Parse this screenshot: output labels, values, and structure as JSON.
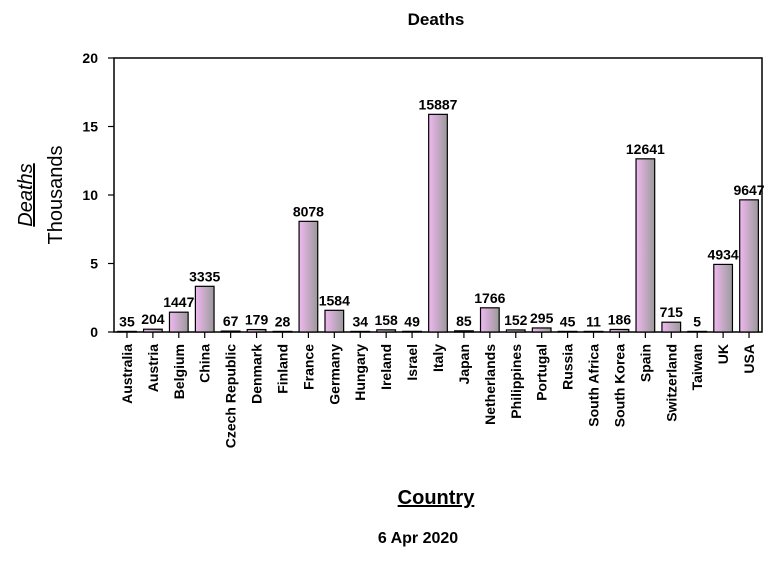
{
  "chart_data": {
    "type": "bar",
    "title": "Deaths",
    "xlabel": "Country",
    "ylabel_top": "Deaths",
    "ylabel_bottom": "Thousands",
    "footer": "6 Apr 2020",
    "ylim": [
      0,
      20
    ],
    "yticks": [
      0,
      5,
      10,
      15,
      20
    ],
    "grid": false,
    "legend": "none",
    "bar_gradient": [
      "#f0b8f0",
      "#9a9a9a"
    ],
    "categories": [
      "Australia",
      "Austria",
      "Belgium",
      "China",
      "Czech Republic",
      "Denmark",
      "Finland",
      "France",
      "Germany",
      "Hungary",
      "Ireland",
      "Israel",
      "Italy",
      "Japan",
      "Netherlands",
      "Philippines",
      "Portugal",
      "Russia",
      "South Africa",
      "South Korea",
      "Spain",
      "Switzerland",
      "Taiwan",
      "UK",
      "USA"
    ],
    "values": [
      35,
      204,
      1447,
      3335,
      67,
      179,
      28,
      8078,
      1584,
      34,
      158,
      49,
      15887,
      85,
      1766,
      152,
      295,
      45,
      11,
      186,
      12641,
      715,
      5,
      4934,
      9647
    ],
    "data_labels": [
      "35",
      "204",
      "1447",
      "3335",
      "67",
      "179",
      "28",
      "8078",
      "1584",
      "34",
      "158",
      "49",
      "15887",
      "85",
      "1766",
      "152",
      "295",
      "45",
      "11",
      "186",
      "12641",
      "715",
      "5",
      "4934",
      "9647"
    ]
  }
}
